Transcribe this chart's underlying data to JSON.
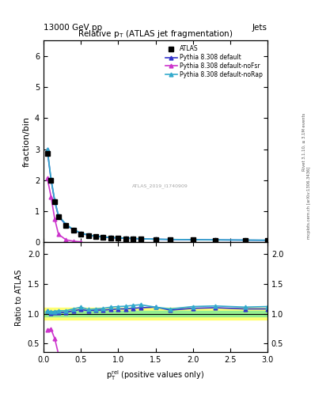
{
  "title": "Relative $p_{T}$ (ATLAS jet fragmentation)",
  "header_left": "13000 GeV pp",
  "header_right": "Jets",
  "ylabel_main": "fraction/bin",
  "ylabel_ratio": "Ratio to ATLAS",
  "xlabel": "$p_{\\mathrm{T}}^{\\mathrm{rel}}$ (positive values only)",
  "watermark": "ATLAS_2019_I1740909",
  "right_label": "mcplots.cern.ch [arXiv:1306.3436]",
  "right_label2": "Rivet 3.1.10, ≥ 3.1M events",
  "ylim_main": [
    0,
    6.5
  ],
  "ylim_ratio": [
    0.35,
    2.2
  ],
  "xlim": [
    0,
    3.0
  ],
  "atlas_x": [
    0.05,
    0.1,
    0.15,
    0.2,
    0.3,
    0.4,
    0.5,
    0.6,
    0.7,
    0.8,
    0.9,
    1.0,
    1.1,
    1.2,
    1.3,
    1.5,
    1.7,
    2.0,
    2.3,
    2.7,
    3.0
  ],
  "atlas_y": [
    2.85,
    2.0,
    1.3,
    0.82,
    0.55,
    0.38,
    0.27,
    0.22,
    0.18,
    0.16,
    0.14,
    0.13,
    0.12,
    0.11,
    0.1,
    0.09,
    0.085,
    0.075,
    0.07,
    0.065,
    0.06
  ],
  "pythia_default_x": [
    0.05,
    0.1,
    0.15,
    0.2,
    0.3,
    0.4,
    0.5,
    0.6,
    0.7,
    0.8,
    0.9,
    1.0,
    1.1,
    1.2,
    1.3,
    1.5,
    1.7,
    2.0,
    2.3,
    2.7,
    3.0
  ],
  "pythia_default_y": [
    2.98,
    2.02,
    1.32,
    0.84,
    0.56,
    0.4,
    0.29,
    0.23,
    0.19,
    0.17,
    0.15,
    0.14,
    0.13,
    0.12,
    0.11,
    0.1,
    0.09,
    0.082,
    0.077,
    0.07,
    0.065
  ],
  "pythia_nofsr_x": [
    0.05,
    0.1,
    0.15,
    0.2,
    0.3,
    0.4,
    0.5
  ],
  "pythia_nofsr_y": [
    2.07,
    1.47,
    0.75,
    0.26,
    0.08,
    0.035,
    0.015
  ],
  "pythia_norap_x": [
    0.05,
    0.1,
    0.15,
    0.2,
    0.3,
    0.4,
    0.5,
    0.6,
    0.7,
    0.8,
    0.9,
    1.0,
    1.1,
    1.2,
    1.3,
    1.5,
    1.7,
    2.0,
    2.3,
    2.7,
    3.0
  ],
  "pythia_norap_y": [
    3.0,
    2.05,
    1.35,
    0.86,
    0.58,
    0.41,
    0.3,
    0.235,
    0.195,
    0.175,
    0.155,
    0.145,
    0.135,
    0.125,
    0.115,
    0.1,
    0.092,
    0.084,
    0.079,
    0.072,
    0.067
  ],
  "ratio_default_x": [
    0.05,
    0.1,
    0.15,
    0.2,
    0.3,
    0.4,
    0.5,
    0.6,
    0.7,
    0.8,
    0.9,
    1.0,
    1.1,
    1.2,
    1.3,
    1.5,
    1.7,
    2.0,
    2.3,
    2.7,
    3.0
  ],
  "ratio_default_y": [
    1.05,
    1.01,
    1.02,
    1.02,
    1.02,
    1.05,
    1.07,
    1.05,
    1.06,
    1.06,
    1.07,
    1.08,
    1.08,
    1.09,
    1.1,
    1.11,
    1.06,
    1.09,
    1.1,
    1.08,
    1.08
  ],
  "ratio_nofsr_x": [
    0.05,
    0.1,
    0.15,
    0.2,
    0.3,
    0.4,
    0.5
  ],
  "ratio_nofsr_y": [
    0.73,
    0.74,
    0.58,
    0.32,
    0.15,
    0.09,
    0.06
  ],
  "ratio_norap_x": [
    0.05,
    0.1,
    0.15,
    0.2,
    0.3,
    0.4,
    0.5,
    0.6,
    0.7,
    0.8,
    0.9,
    1.0,
    1.1,
    1.2,
    1.3,
    1.5,
    1.7,
    2.0,
    2.3,
    2.7,
    3.0
  ],
  "ratio_norap_y": [
    1.05,
    1.03,
    1.04,
    1.05,
    1.05,
    1.08,
    1.11,
    1.07,
    1.08,
    1.09,
    1.11,
    1.12,
    1.125,
    1.14,
    1.15,
    1.11,
    1.08,
    1.12,
    1.13,
    1.11,
    1.12
  ],
  "color_atlas": "#000000",
  "color_default": "#3333cc",
  "color_nofsr": "#cc33cc",
  "color_norap": "#33aacc",
  "error_band_green": 0.05,
  "error_band_yellow": 0.1,
  "legend_labels": [
    "ATLAS",
    "Pythia 8.308 default",
    "Pythia 8.308 default-noFsr",
    "Pythia 8.308 default-noRap"
  ]
}
